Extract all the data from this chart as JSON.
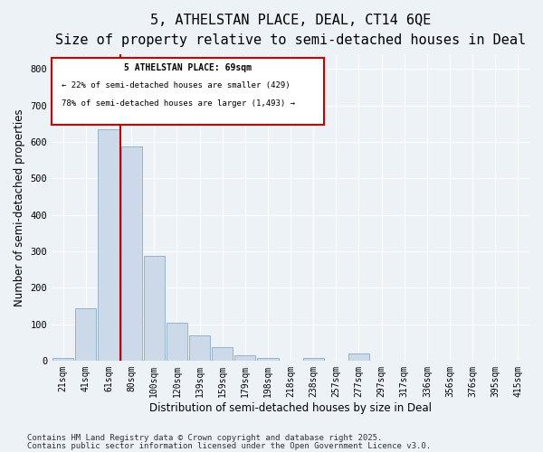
{
  "title": "5, ATHELSTAN PLACE, DEAL, CT14 6QE",
  "subtitle": "Size of property relative to semi-detached houses in Deal",
  "xlabel": "Distribution of semi-detached houses by size in Deal",
  "ylabel": "Number of semi-detached properties",
  "bar_labels": [
    "21sqm",
    "41sqm",
    "61sqm",
    "80sqm",
    "100sqm",
    "120sqm",
    "139sqm",
    "159sqm",
    "179sqm",
    "198sqm",
    "218sqm",
    "238sqm",
    "257sqm",
    "277sqm",
    "297sqm",
    "317sqm",
    "336sqm",
    "356sqm",
    "376sqm",
    "395sqm",
    "415sqm"
  ],
  "bar_values": [
    8,
    143,
    635,
    587,
    288,
    103,
    68,
    38,
    15,
    8,
    0,
    8,
    0,
    20,
    0,
    0,
    0,
    0,
    0,
    0,
    0
  ],
  "bar_color": "#ccd9e8",
  "bar_edge_color": "#8aaac8",
  "vline_x": 2.5,
  "vline_color": "#cc0000",
  "annotation_title": "5 ATHELSTAN PLACE: 69sqm",
  "annotation_line2": "← 22% of semi-detached houses are smaller (429)",
  "annotation_line3": "78% of semi-detached houses are larger (1,493) →",
  "annotation_box_color": "#cc0000",
  "ylim": [
    0,
    840
  ],
  "yticks": [
    0,
    100,
    200,
    300,
    400,
    500,
    600,
    700,
    800
  ],
  "footer_line1": "Contains HM Land Registry data © Crown copyright and database right 2025.",
  "footer_line2": "Contains public sector information licensed under the Open Government Licence v3.0.",
  "bg_color": "#edf2f7",
  "plot_bg_color": "#edf2f7",
  "grid_color": "#ffffff",
  "title_fontsize": 11,
  "subtitle_fontsize": 9,
  "axis_label_fontsize": 8.5,
  "tick_fontsize": 7,
  "footer_fontsize": 6.5
}
